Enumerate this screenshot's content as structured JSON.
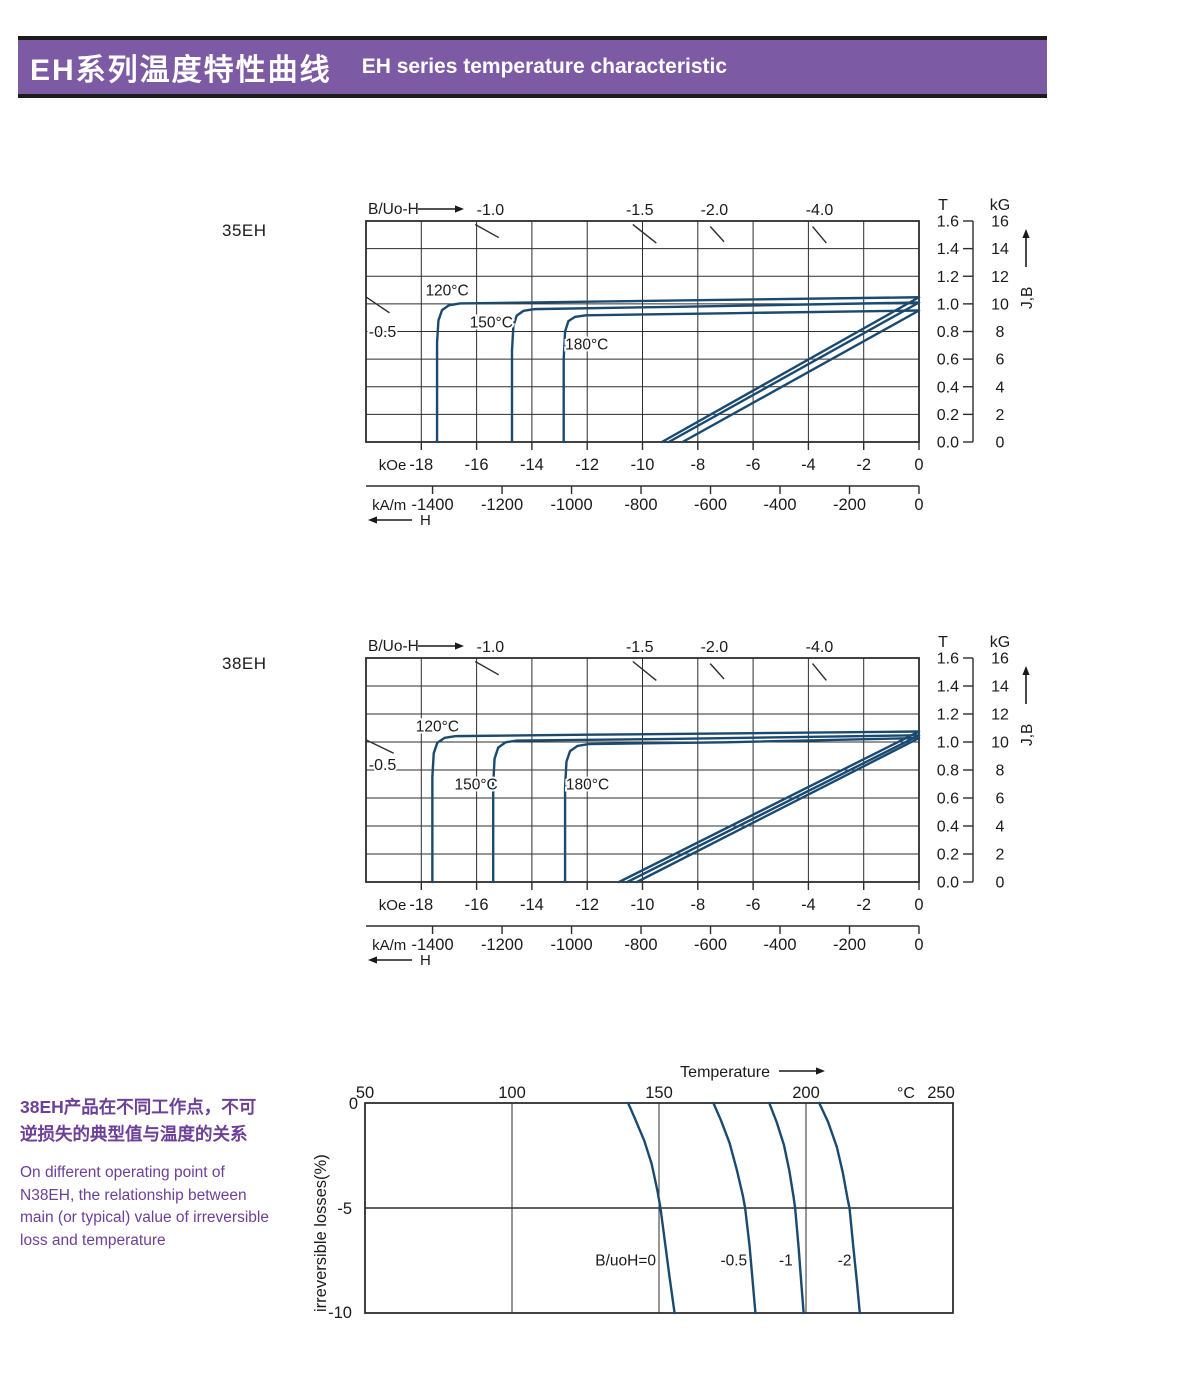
{
  "header": {
    "title_zh": "EH系列温度特性曲线",
    "title_en": "EH  series temperature characteristic"
  },
  "colors": {
    "accent": "#7d5aa4",
    "curve": "#1a4a70",
    "grid": "#2d2d2d",
    "note_text": "#6d4098",
    "ink": "#1a1a1a"
  },
  "notes": {
    "zh": "38EH产品在不同工作点，不可\n逆损失的典型值与温度的关系",
    "en": "On different operating point of\nN38EH,  the relationship between\nmain (or typical) value of irreversible\nloss and temperature"
  },
  "chart_data": [
    {
      "type": "line",
      "id": "demag-35eh",
      "name": "35EH",
      "top_axis_title": "B/Uo-H",
      "bottom_arrow_label": "H",
      "x_unit_primary": "kOe",
      "x_unit_secondary": "kA/m",
      "xlim": [
        -20,
        0
      ],
      "ylim": [
        0,
        1.6
      ],
      "koe_ticks": [
        -18,
        -16,
        -14,
        -12,
        -10,
        -8,
        -6,
        -4,
        -2,
        0
      ],
      "kam_ticks": [
        -1400,
        -1200,
        -1000,
        -800,
        -600,
        -400,
        -200,
        0
      ],
      "right_axis": {
        "col1_header": "T",
        "col2_header": "kG",
        "col1_ticks": [
          "1.6",
          "1.4",
          "1.2",
          "1.0",
          "0.8",
          "0.6",
          "0.4",
          "0.2",
          "0.0"
        ],
        "col2_ticks": [
          "16",
          "14",
          "12",
          "10",
          "8",
          "6",
          "4",
          "2",
          "0"
        ],
        "arrow_label": "J,B"
      },
      "load_lines_top": [
        {
          "label": "-1.0",
          "h": -15.5,
          "slash": [
            [
              -16.05,
              1.575
            ],
            [
              -15.2,
              1.48
            ]
          ]
        },
        {
          "label": "-1.5",
          "h": -10.1,
          "slash": [
            [
              -10.35,
              1.575
            ],
            [
              -9.5,
              1.44
            ]
          ]
        },
        {
          "label": "-2.0",
          "h": -7.4,
          "slash": [
            [
              -7.55,
              1.56
            ],
            [
              -7.05,
              1.45
            ]
          ]
        },
        {
          "label": "-4.0",
          "h": -3.6,
          "slash": [
            [
              -3.85,
              1.56
            ],
            [
              -3.35,
              1.44
            ]
          ]
        }
      ],
      "load_line_left": {
        "label": "-0.5",
        "label_at": [
          -19.9,
          0.76
        ],
        "slash": [
          [
            -20,
            1.05
          ],
          [
            -19.15,
            0.935
          ]
        ]
      },
      "series": [
        {
          "name": "120°C",
          "label_at": [
            -17.85,
            1.06
          ],
          "j_curve": [
            [
              -17.43,
              0
            ],
            [
              -17.43,
              0.72
            ],
            [
              -17.38,
              0.88
            ],
            [
              -17.25,
              0.955
            ],
            [
              -17.0,
              0.99
            ],
            [
              -16.6,
              1.003
            ],
            [
              -12,
              1.016
            ],
            [
              -6,
              1.032
            ],
            [
              0,
              1.048
            ]
          ],
          "b_curve": [
            [
              -9.3,
              0
            ],
            [
              0,
              1.048
            ]
          ]
        },
        {
          "name": "150°C",
          "label_at": [
            -16.25,
            0.83
          ],
          "j_curve": [
            [
              -14.72,
              0
            ],
            [
              -14.72,
              0.66
            ],
            [
              -14.67,
              0.84
            ],
            [
              -14.55,
              0.915
            ],
            [
              -14.3,
              0.95
            ],
            [
              -13.9,
              0.962
            ],
            [
              -9,
              0.978
            ],
            [
              0,
              1.01
            ]
          ],
          "b_curve": [
            [
              -9.05,
              0
            ],
            [
              0,
              1.01
            ]
          ]
        },
        {
          "name": "180°C",
          "label_at": [
            -12.8,
            0.67
          ],
          "j_curve": [
            [
              -12.85,
              0
            ],
            [
              -12.85,
              0.6
            ],
            [
              -12.8,
              0.8
            ],
            [
              -12.68,
              0.875
            ],
            [
              -12.45,
              0.905
            ],
            [
              -12.05,
              0.917
            ],
            [
              -7,
              0.932
            ],
            [
              0,
              0.952
            ]
          ],
          "b_curve": [
            [
              -8.55,
              0
            ],
            [
              0,
              0.952
            ]
          ]
        }
      ]
    },
    {
      "type": "line",
      "id": "demag-38eh",
      "name": "38EH",
      "top_axis_title": "B/Uo-H",
      "bottom_arrow_label": "H",
      "x_unit_primary": "kOe",
      "x_unit_secondary": "kA/m",
      "xlim": [
        -20,
        0
      ],
      "ylim": [
        0,
        1.6
      ],
      "koe_ticks": [
        -18,
        -16,
        -14,
        -12,
        -10,
        -8,
        -6,
        -4,
        -2,
        0
      ],
      "kam_ticks": [
        -1400,
        -1200,
        -1000,
        -800,
        -600,
        -400,
        -200,
        0
      ],
      "right_axis": {
        "col1_header": "T",
        "col2_header": "kG",
        "col1_ticks": [
          "1.6",
          "1.4",
          "1.2",
          "1.0",
          "0.8",
          "0.6",
          "0.4",
          "0.2",
          "0.0"
        ],
        "col2_ticks": [
          "16",
          "14",
          "12",
          "10",
          "8",
          "6",
          "4",
          "2",
          "0"
        ],
        "arrow_label": "J,B"
      },
      "load_lines_top": [
        {
          "label": "-1.0",
          "h": -15.5,
          "slash": [
            [
              -16.05,
              1.575
            ],
            [
              -15.2,
              1.48
            ]
          ]
        },
        {
          "label": "-1.5",
          "h": -10.1,
          "slash": [
            [
              -10.35,
              1.575
            ],
            [
              -9.5,
              1.44
            ]
          ]
        },
        {
          "label": "-2.0",
          "h": -7.4,
          "slash": [
            [
              -7.55,
              1.56
            ],
            [
              -7.05,
              1.45
            ]
          ]
        },
        {
          "label": "-4.0",
          "h": -3.6,
          "slash": [
            [
              -3.85,
              1.56
            ],
            [
              -3.35,
              1.44
            ]
          ]
        }
      ],
      "load_line_left": {
        "label": "-0.5",
        "label_at": [
          -19.9,
          0.8
        ],
        "slash": [
          [
            -20,
            1.015
          ],
          [
            -19.0,
            0.92
          ]
        ]
      },
      "series": [
        {
          "name": "120°C",
          "label_at": [
            -18.2,
            1.075
          ],
          "j_curve": [
            [
              -17.6,
              0
            ],
            [
              -17.6,
              0.75
            ],
            [
              -17.55,
              0.92
            ],
            [
              -17.42,
              0.995
            ],
            [
              -17.15,
              1.03
            ],
            [
              -16.75,
              1.042
            ],
            [
              -12,
              1.052
            ],
            [
              -6,
              1.063
            ],
            [
              0,
              1.075
            ]
          ],
          "b_curve": [
            [
              -10.85,
              0
            ],
            [
              0,
              1.075
            ]
          ]
        },
        {
          "name": "150°C",
          "label_at": [
            -16.8,
            0.66
          ],
          "j_curve": [
            [
              -15.4,
              0
            ],
            [
              -15.4,
              0.7
            ],
            [
              -15.35,
              0.88
            ],
            [
              -15.22,
              0.96
            ],
            [
              -14.95,
              0.998
            ],
            [
              -14.55,
              1.01
            ],
            [
              -9,
              1.022
            ],
            [
              0,
              1.048
            ]
          ],
          "b_curve": [
            [
              -10.55,
              0
            ],
            [
              0,
              1.048
            ]
          ]
        },
        {
          "name": "180°C",
          "label_at": [
            -12.77,
            0.66
          ],
          "j_curve": [
            [
              -12.8,
              0
            ],
            [
              -12.8,
              0.68
            ],
            [
              -12.75,
              0.86
            ],
            [
              -12.62,
              0.935
            ],
            [
              -12.35,
              0.972
            ],
            [
              -11.95,
              0.985
            ],
            [
              -7,
              0.998
            ],
            [
              0,
              1.028
            ]
          ],
          "b_curve": [
            [
              -10.2,
              0
            ],
            [
              0,
              1.028
            ]
          ]
        }
      ]
    },
    {
      "type": "line",
      "id": "loss",
      "top_arrow_label": "Temperature",
      "unit_label": {
        "text": "°C",
        "t": 234
      },
      "ylabel": "irreversible  losses(%)",
      "xlim": [
        50,
        250
      ],
      "ylim": [
        -10,
        0
      ],
      "x_ticks": [
        50,
        100,
        150,
        200,
        250
      ],
      "x_gridlines": [
        100,
        150,
        200
      ],
      "y_ticks": [
        "0",
        "-5",
        "-10"
      ],
      "y_gridlines": [
        -5
      ],
      "series": [
        {
          "name": "B/uoH=0",
          "label_at": [
            149,
            -7.5
          ],
          "points": [
            [
              139.5,
              0
            ],
            [
              142,
              -0.8
            ],
            [
              145,
              -1.8
            ],
            [
              147.5,
              -2.9
            ],
            [
              149.5,
              -4.2
            ],
            [
              150.5,
              -5
            ],
            [
              152,
              -6.6
            ],
            [
              153.5,
              -8.2
            ],
            [
              155.3,
              -10
            ]
          ]
        },
        {
          "name": "-0.5",
          "label_at": [
            180,
            -7.5
          ],
          "points": [
            [
              168.5,
              0
            ],
            [
              171,
              -0.8
            ],
            [
              174,
              -1.9
            ],
            [
              176.5,
              -3.2
            ],
            [
              178.5,
              -4.4
            ],
            [
              179.3,
              -5
            ],
            [
              180.8,
              -6.8
            ],
            [
              181.8,
              -8.4
            ],
            [
              182.8,
              -10
            ]
          ]
        },
        {
          "name": "-1",
          "label_at": [
            195.5,
            -7.5
          ],
          "points": [
            [
              187.5,
              0
            ],
            [
              190,
              -0.9
            ],
            [
              192.5,
              -2.0
            ],
            [
              194.3,
              -3.2
            ],
            [
              195.8,
              -4.5
            ],
            [
              196.3,
              -5
            ],
            [
              197.5,
              -6.9
            ],
            [
              198.3,
              -8.4
            ],
            [
              199.2,
              -10
            ]
          ]
        },
        {
          "name": "-2",
          "label_at": [
            215.5,
            -7.5
          ],
          "points": [
            [
              204.5,
              0
            ],
            [
              207.5,
              -0.9
            ],
            [
              210.5,
              -2.1
            ],
            [
              212.5,
              -3.3
            ],
            [
              214.2,
              -4.6
            ],
            [
              214.8,
              -5
            ],
            [
              216.2,
              -7
            ],
            [
              217.3,
              -8.5
            ],
            [
              218.3,
              -10
            ]
          ]
        }
      ]
    }
  ]
}
